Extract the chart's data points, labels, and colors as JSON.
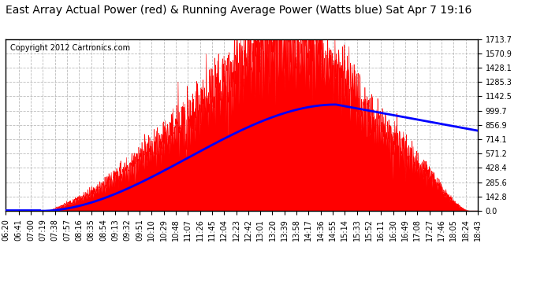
{
  "title": "East Array Actual Power (red) & Running Average Power (Watts blue) Sat Apr 7 19:16",
  "copyright": "Copyright 2012 Cartronics.com",
  "ylabel_values": [
    0.0,
    142.8,
    285.6,
    428.4,
    571.2,
    714.1,
    856.9,
    999.7,
    1142.5,
    1285.3,
    1428.1,
    1570.9,
    1713.7
  ],
  "x_tick_labels": [
    "06:20",
    "06:41",
    "07:00",
    "07:19",
    "07:38",
    "07:57",
    "08:16",
    "08:35",
    "08:54",
    "09:13",
    "09:32",
    "09:51",
    "10:10",
    "10:29",
    "10:48",
    "11:07",
    "11:26",
    "11:45",
    "12:04",
    "12:23",
    "12:42",
    "13:01",
    "13:20",
    "13:39",
    "13:58",
    "14:17",
    "14:36",
    "14:55",
    "15:14",
    "15:33",
    "15:52",
    "16:11",
    "16:30",
    "16:49",
    "17:08",
    "17:27",
    "17:46",
    "18:05",
    "18:24",
    "18:43"
  ],
  "red_color": "#FF0000",
  "blue_color": "#0000FF",
  "bg_color": "#FFFFFF",
  "grid_color": "#AAAAAA",
  "title_fontsize": 10,
  "copyright_fontsize": 7,
  "tick_fontsize": 7
}
